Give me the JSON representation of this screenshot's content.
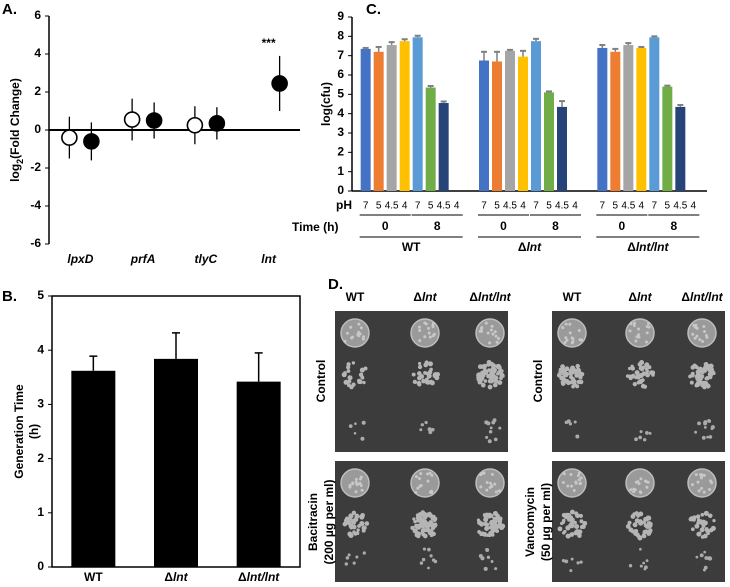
{
  "chart_data": [
    {
      "type": "dot",
      "panel_label": "A.",
      "y_label": [
        "log",
        "2",
        "(Fold Change)"
      ],
      "categories": [
        "lpxD",
        "prfA",
        "tlyC",
        "lnt"
      ],
      "series": [
        {
          "fill": "#ffffff",
          "color": "#000000",
          "values": [
            -0.4,
            0.55,
            0.25,
            null
          ],
          "errors": [
            1.1,
            1.1,
            1.0,
            null
          ]
        },
        {
          "fill": "#000000",
          "color": "#000000",
          "values": [
            -0.6,
            0.5,
            0.35,
            2.45
          ],
          "errors": [
            1.0,
            0.95,
            0.85,
            1.45
          ]
        }
      ],
      "annotation": "***",
      "ylim": [
        -6,
        6
      ],
      "yticks": [
        -6,
        -4,
        -2,
        0,
        2,
        4,
        6
      ]
    },
    {
      "type": "bar",
      "panel_label": "B.",
      "y_label": [
        "Generation Time",
        "(h)"
      ],
      "categories": [
        "WT",
        "Δlnt",
        "Δlnt/lnt"
      ],
      "values": [
        3.62,
        3.84,
        3.42
      ],
      "errors": [
        0.27,
        0.48,
        0.53
      ],
      "color": "#000000",
      "ylim": [
        0,
        5
      ],
      "yticks": [
        0,
        1,
        2,
        3,
        4,
        5
      ]
    },
    {
      "type": "grouped_bar",
      "panel_label": "C.",
      "y_label": "log(cfu)",
      "ph_label": "pH",
      "time_label": "Time (h)",
      "categories": [
        "WT",
        "Δlnt",
        "Δlnt/lnt"
      ],
      "time_groups": [
        {
          "time": "0",
          "series": [
            {
              "ph": "7",
              "color": "#4472c4",
              "values": [
                7.35,
                6.75,
                7.4
              ],
              "errors": [
                0.05,
                0.45,
                0.15
              ]
            },
            {
              "ph": "5",
              "color": "#ed7d31",
              "values": [
                7.2,
                6.7,
                7.2
              ],
              "errors": [
                0.25,
                0.5,
                0.15
              ]
            },
            {
              "ph": "4.5",
              "color": "#a5a5a5",
              "values": [
                7.55,
                7.25,
                7.55
              ],
              "errors": [
                0.15,
                0.05,
                0.1
              ]
            },
            {
              "ph": "4",
              "color": "#ffc000",
              "values": [
                7.75,
                6.95,
                7.4
              ],
              "errors": [
                0.1,
                0.3,
                0.05
              ]
            }
          ]
        },
        {
          "time": "8",
          "series": [
            {
              "ph": "7",
              "color": "#5b9bd5",
              "values": [
                7.95,
                7.75,
                7.95
              ],
              "errors": [
                0.08,
                0.12,
                0.05
              ]
            },
            {
              "ph": "5",
              "color": "#70ad47",
              "values": [
                5.35,
                5.1,
                5.4
              ],
              "errors": [
                0.08,
                0.05,
                0.05
              ]
            },
            {
              "ph": "4.5",
              "color": "#264478",
              "values": [
                4.55,
                4.35,
                4.35
              ],
              "errors": [
                0.08,
                0.3,
                0.1
              ]
            },
            {
              "ph": "4",
              "color": "#9e480e",
              "values": [
                null,
                null,
                null
              ],
              "errors": [
                null,
                null,
                null
              ]
            }
          ]
        }
      ],
      "error_color": "#7f7f7f",
      "ylim": [
        0,
        9
      ],
      "yticks": [
        0,
        1,
        2,
        3,
        4,
        5,
        6,
        7,
        8,
        9
      ]
    }
  ],
  "panel_d": {
    "panel_label": "D.",
    "column_headers": [
      "WT",
      "Δlnt",
      "Δlnt/lnt"
    ],
    "left_rows": [
      [
        "Control"
      ],
      [
        "Bacitracin",
        "(200 µg per ml)"
      ]
    ],
    "right_rows": [
      [
        "Control"
      ],
      [
        "Vancomycin",
        "(50 µg per ml)"
      ]
    ]
  }
}
